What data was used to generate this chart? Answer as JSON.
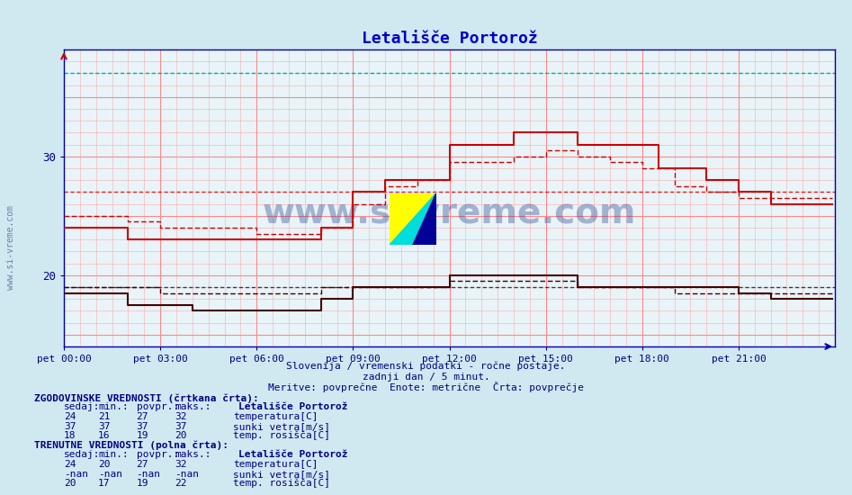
{
  "title": "Letališče Portorož",
  "title_color": "#0000cc",
  "bg_color": "#d0e8f0",
  "plot_bg_color": "#e8f4f8",
  "grid_color_minor": "#ffaaaa",
  "grid_color_major": "#ff8888",
  "tick_color": "#000080",
  "xlim": [
    0,
    288
  ],
  "ylim": [
    14,
    39
  ],
  "yticks": [
    20,
    30
  ],
  "xtick_positions": [
    0,
    36,
    72,
    108,
    144,
    180,
    216,
    252
  ],
  "xtick_labels": [
    "pet 00:00",
    "pet 03:00",
    "pet 06:00",
    "pet 09:00",
    "pet 12:00",
    "pet 15:00",
    "pet 18:00",
    "pet 21:00"
  ],
  "subtitle1": "Slovenija / vremenski podatki - ročne postaje.",
  "subtitle2": "zadnji dan / 5 minut.",
  "subtitle3": "Meritve: povprečne  Enote: metrične  Črta: povprečje",
  "subtitle_color": "#000080",
  "watermark": "www.si-vreme.com",
  "watermark_color": "#1a3a8a",
  "temp_solid_color": "#cc0000",
  "temp_dashed_color": "#cc0000",
  "dew_solid_color": "#440000",
  "dew_dashed_color": "#440000",
  "wind_gust_color": "#00aaaa",
  "hist_avg_temp": 27,
  "hist_avg_dew": 19,
  "hist_avg_wind": 37,
  "legend_hist": "ZGODOVINSKE VREDNOSTI (črtkana črta):",
  "legend_curr": "TRENUTNE VREDNOSTI (polna črta):",
  "legend_color": "#000080",
  "hist_temp_vals": [
    "24",
    "21",
    "27",
    "32"
  ],
  "hist_wind_vals": [
    "37",
    "37",
    "37",
    "37"
  ],
  "hist_dew_vals": [
    "18",
    "16",
    "19",
    "20"
  ],
  "curr_temp_vals": [
    "24",
    "20",
    "27",
    "32"
  ],
  "curr_wind_vals": [
    "-nan",
    "-nan",
    "-nan",
    "-nan"
  ],
  "curr_dew_vals": [
    "20",
    "17",
    "19",
    "22"
  ],
  "temp_label": "temperatura[C]",
  "wind_label": "sunki vetra[m/s]",
  "dew_label": "temp. rosišča[C]",
  "temp_icon_color": "#cc0000",
  "wind_icon_color": "#00aa88",
  "dew_icon_color": "#880000",
  "station_name": "Letališče Portorož",
  "left_watermark": "www.si-vreme.com"
}
